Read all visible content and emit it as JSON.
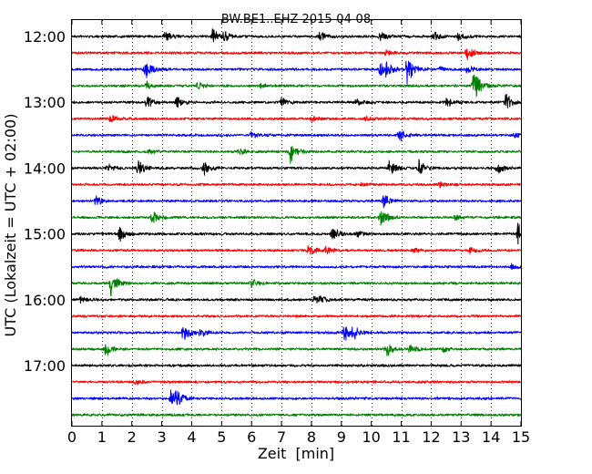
{
  "chart_data": {
    "type": "line",
    "title": "BW.BE1..EHZ 2015-04-08",
    "xlabel": "Zeit  [min]",
    "ylabel": "UTC (Lokalzeit = UTC + 02:00)",
    "xlim": [
      0,
      15
    ],
    "x_ticks": [
      "0",
      "1",
      "2",
      "3",
      "4",
      "5",
      "6",
      "7",
      "8",
      "9",
      "10",
      "11",
      "12",
      "13",
      "14",
      "15"
    ],
    "y_ticks": [
      "12:00",
      "13:00",
      "14:00",
      "15:00",
      "16:00",
      "17:00"
    ],
    "grid": true,
    "trace_interval_minutes": 15,
    "colors": [
      "#000000",
      "#ff0000",
      "#0000ff",
      "#008000"
    ],
    "series": [
      {
        "start": "12:00",
        "color": "#000000",
        "events": [
          [
            3.1,
            0.4
          ],
          [
            4.7,
            0.5
          ],
          [
            5.1,
            0.4
          ],
          [
            8.3,
            0.35
          ],
          [
            10.3,
            0.45
          ],
          [
            12.1,
            0.35
          ],
          [
            12.9,
            0.3
          ]
        ]
      },
      {
        "start": "12:15",
        "color": "#ff0000",
        "events": [
          [
            10.5,
            0.2
          ],
          [
            13.2,
            0.6
          ]
        ]
      },
      {
        "start": "12:30",
        "color": "#0000ff",
        "events": [
          [
            2.4,
            0.4
          ],
          [
            2.5,
            0.4
          ],
          [
            10.3,
            0.6
          ],
          [
            10.5,
            0.5
          ],
          [
            11.2,
            1.3
          ],
          [
            12.3,
            0.2
          ],
          [
            13.2,
            0.3
          ]
        ]
      },
      {
        "start": "12:45",
        "color": "#008000",
        "events": [
          [
            2.5,
            0.3
          ],
          [
            4.2,
            0.3
          ],
          [
            6.3,
            0.2
          ],
          [
            13.4,
            0.9
          ],
          [
            13.5,
            0.5
          ]
        ]
      },
      {
        "start": "13:00",
        "color": "#000000",
        "events": [
          [
            2.5,
            0.5
          ],
          [
            3.5,
            0.4
          ],
          [
            7.0,
            0.3
          ],
          [
            9.5,
            0.2
          ],
          [
            12.5,
            0.35
          ],
          [
            14.5,
            0.6
          ]
        ]
      },
      {
        "start": "13:15",
        "color": "#ff0000",
        "events": [
          [
            1.3,
            0.3
          ],
          [
            8.0,
            0.2
          ],
          [
            9.8,
            0.2
          ]
        ]
      },
      {
        "start": "13:30",
        "color": "#0000ff",
        "events": [
          [
            6.0,
            0.25
          ],
          [
            10.9,
            0.6
          ],
          [
            14.8,
            0.3
          ]
        ]
      },
      {
        "start": "13:45",
        "color": "#008000",
        "events": [
          [
            2.6,
            0.2
          ],
          [
            5.6,
            0.3
          ],
          [
            7.3,
            0.8
          ]
        ]
      },
      {
        "start": "14:00",
        "color": "#000000",
        "events": [
          [
            1.2,
            0.3
          ],
          [
            2.2,
            0.6
          ],
          [
            4.4,
            0.5
          ],
          [
            10.6,
            0.6
          ],
          [
            11.6,
            0.6
          ],
          [
            14.2,
            0.4
          ]
        ]
      },
      {
        "start": "14:15",
        "color": "#ff0000",
        "events": [
          [
            9.6,
            0.15
          ],
          [
            12.3,
            0.2
          ]
        ]
      },
      {
        "start": "14:30",
        "color": "#0000ff",
        "events": [
          [
            0.8,
            0.3
          ],
          [
            10.4,
            0.5
          ]
        ]
      },
      {
        "start": "14:45",
        "color": "#008000",
        "events": [
          [
            2.7,
            0.6
          ],
          [
            10.3,
            0.8
          ],
          [
            12.8,
            0.2
          ]
        ]
      },
      {
        "start": "15:00",
        "color": "#000000",
        "events": [
          [
            1.6,
            0.6
          ],
          [
            8.7,
            0.5
          ],
          [
            9.5,
            0.3
          ],
          [
            14.9,
            0.7
          ]
        ]
      },
      {
        "start": "15:15",
        "color": "#ff0000",
        "events": [
          [
            7.9,
            0.4
          ],
          [
            8.5,
            0.3
          ],
          [
            11.4,
            0.2
          ],
          [
            13.3,
            0.2
          ]
        ]
      },
      {
        "start": "15:30",
        "color": "#0000ff",
        "events": [
          [
            14.7,
            0.2
          ]
        ]
      },
      {
        "start": "15:45",
        "color": "#008000",
        "events": [
          [
            1.3,
            0.9
          ],
          [
            6.0,
            0.3
          ]
        ]
      },
      {
        "start": "16:00",
        "color": "#000000",
        "events": [
          [
            0.3,
            0.2
          ],
          [
            8.1,
            0.3
          ],
          [
            8.3,
            0.2
          ]
        ]
      },
      {
        "start": "16:15",
        "color": "#ff0000",
        "events": []
      },
      {
        "start": "16:30",
        "color": "#0000ff",
        "events": [
          [
            3.7,
            0.7
          ],
          [
            4.3,
            0.3
          ],
          [
            9.1,
            0.6
          ],
          [
            9.4,
            0.5
          ]
        ]
      },
      {
        "start": "16:45",
        "color": "#008000",
        "events": [
          [
            1.1,
            0.6
          ],
          [
            10.5,
            0.5
          ],
          [
            11.3,
            0.3
          ],
          [
            12.4,
            0.2
          ]
        ]
      },
      {
        "start": "17:00",
        "color": "#000000",
        "events": []
      },
      {
        "start": "17:15",
        "color": "#ff0000",
        "events": [
          [
            2.1,
            0.2
          ]
        ]
      },
      {
        "start": "17:30",
        "color": "#0000ff",
        "events": [
          [
            3.3,
            0.8
          ],
          [
            3.5,
            0.5
          ]
        ]
      },
      {
        "start": "17:45",
        "color": "#008000",
        "events": []
      }
    ]
  }
}
